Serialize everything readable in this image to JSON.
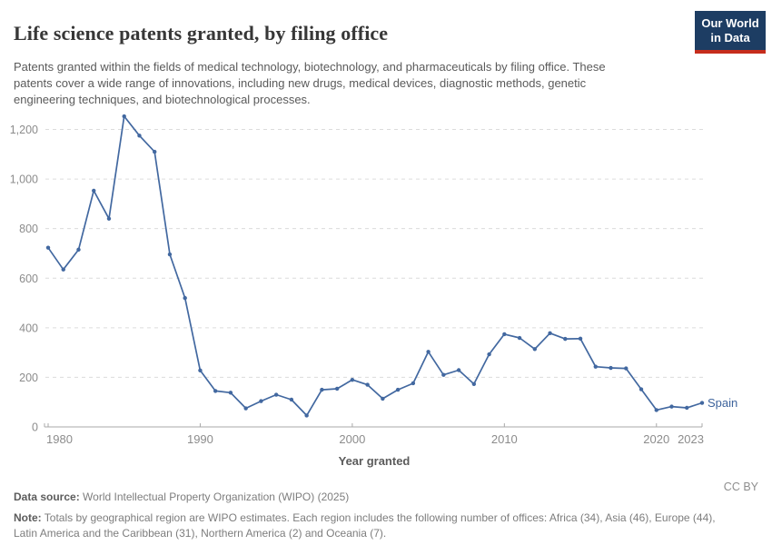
{
  "header": {
    "title": "Life science patents granted, by filing office",
    "subtitle": "Patents granted within the fields of medical technology, biotechnology, and pharmaceuticals by filing office. These patents cover a wide range of innovations, including new drugs, medical devices, diagnostic methods, genetic engineering techniques, and biotechnological processes.",
    "logo": {
      "line1": "Our World",
      "line2": "in Data"
    }
  },
  "chart_data": {
    "type": "line",
    "title": "Life science patents granted, by filing office",
    "xlabel": "Year granted",
    "ylabel": "",
    "grid": "horizontal-dashed",
    "legend_position": "end-of-line",
    "ylim": [
      0,
      1300
    ],
    "yticks": [
      0,
      200,
      400,
      600,
      800,
      1000,
      1200
    ],
    "xticks": [
      1980,
      1990,
      2000,
      2010,
      2020,
      2023
    ],
    "x": [
      1980,
      1981,
      1982,
      1983,
      1984,
      1985,
      1986,
      1987,
      1988,
      1989,
      1990,
      1991,
      1992,
      1993,
      1994,
      1995,
      1996,
      1997,
      1998,
      1999,
      2000,
      2001,
      2002,
      2003,
      2004,
      2005,
      2006,
      2007,
      2008,
      2009,
      2010,
      2011,
      2012,
      2013,
      2014,
      2015,
      2016,
      2017,
      2018,
      2019,
      2020,
      2021,
      2022,
      2023
    ],
    "series": [
      {
        "name": "Spain",
        "values": [
          723,
          635,
          715,
          953,
          840,
          1253,
          1175,
          1110,
          696,
          520,
          228,
          145,
          138,
          75,
          104,
          130,
          110,
          46,
          150,
          154,
          190,
          170,
          114,
          150,
          176,
          303,
          210,
          229,
          173,
          293,
          374,
          359,
          314,
          378,
          355,
          356,
          243,
          238,
          236,
          152,
          68,
          82,
          77,
          97
        ]
      }
    ]
  },
  "footer": {
    "data_source_label": "Data source:",
    "data_source": " World Intellectual Property Organization (WIPO) (2025)",
    "note_label": "Note:",
    "note": " Totals by geographical region are WIPO estimates. Each region includes the following number of offices: Africa (34), Asia (46), Europe (44), Latin America and the Caribbean (31), Northern America (2) and Oceania (7).",
    "license": "CC BY"
  },
  "colors": {
    "line": "#4268a0",
    "series_label": "#3d639c",
    "grid": "#dcdcdc",
    "axis": "#a8a8a8",
    "tick_text": "#8c8c8c",
    "axis_title": "#5b5b5b",
    "logo_bg": "#1d3d63",
    "logo_bar": "#c62d1d"
  }
}
